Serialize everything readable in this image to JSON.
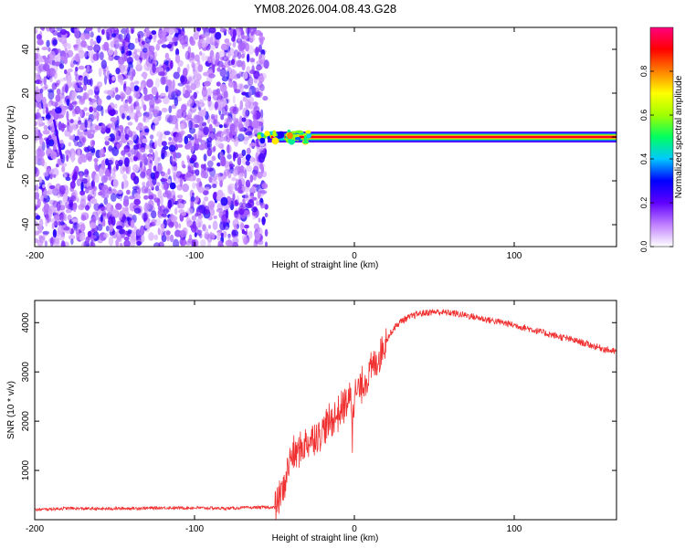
{
  "title": "YM08.2026.004.08.43.G28",
  "colors": {
    "background": "#ffffff",
    "axis": "#000000",
    "snr_line": "#f03030",
    "noise_speckle": "#7a2cf0"
  },
  "chart_data": [
    {
      "type": "heatmap",
      "xlabel": "Height of straight line (km)",
      "ylabel": "Frequency (Hz)",
      "xlim": [
        -200,
        164
      ],
      "ylim": [
        -50,
        50
      ],
      "xticks": [
        -200,
        -100,
        0,
        100
      ],
      "yticks": [
        -40,
        -20,
        0,
        20,
        40
      ],
      "grid": false,
      "noise_region_x": [
        -200,
        -55
      ],
      "signal_line_frequency": 0,
      "signal_start_x": -60,
      "colorbar": {
        "label": "Normalized spectral amplitude",
        "range": [
          0,
          1
        ],
        "ticks": [
          0,
          0.2,
          0.4,
          0.6,
          0.8
        ],
        "tick_labels": [
          "0.0",
          "0.2",
          "0.4",
          "0.6",
          "0.8"
        ],
        "colormap": [
          "#ffffff",
          "#c080ff",
          "#6000ff",
          "#0000ff",
          "#00c8ff",
          "#00ff60",
          "#a0ff00",
          "#ffff00",
          "#ff8000",
          "#ff0000",
          "#ff0080"
        ]
      }
    },
    {
      "type": "line",
      "xlabel": "Height of straight line (km)",
      "ylabel": "SNR (10 * v/v)",
      "xlim": [
        -200,
        164
      ],
      "ylim": [
        0,
        4450
      ],
      "xticks": [
        -200,
        -100,
        0,
        100
      ],
      "yticks": [
        1000,
        2000,
        3000,
        4000
      ],
      "grid": false,
      "series": [
        {
          "color": "#f03030",
          "x": [
            -200,
            -180,
            -160,
            -140,
            -120,
            -100,
            -80,
            -60,
            -50,
            -45,
            -40,
            -35,
            -30,
            -25,
            -20,
            -15,
            -10,
            -5,
            0,
            5,
            10,
            15,
            20,
            25,
            30,
            40,
            50,
            60,
            70,
            80,
            90,
            100,
            110,
            120,
            130,
            140,
            150,
            164
          ],
          "y": [
            200,
            230,
            220,
            230,
            240,
            240,
            230,
            250,
            250,
            550,
            1250,
            1400,
            1550,
            1700,
            1800,
            2000,
            2150,
            2400,
            2500,
            2750,
            3000,
            3300,
            3650,
            3900,
            4050,
            4180,
            4220,
            4200,
            4150,
            4080,
            4020,
            3950,
            3870,
            3780,
            3700,
            3620,
            3520,
            3400
          ]
        }
      ]
    }
  ]
}
